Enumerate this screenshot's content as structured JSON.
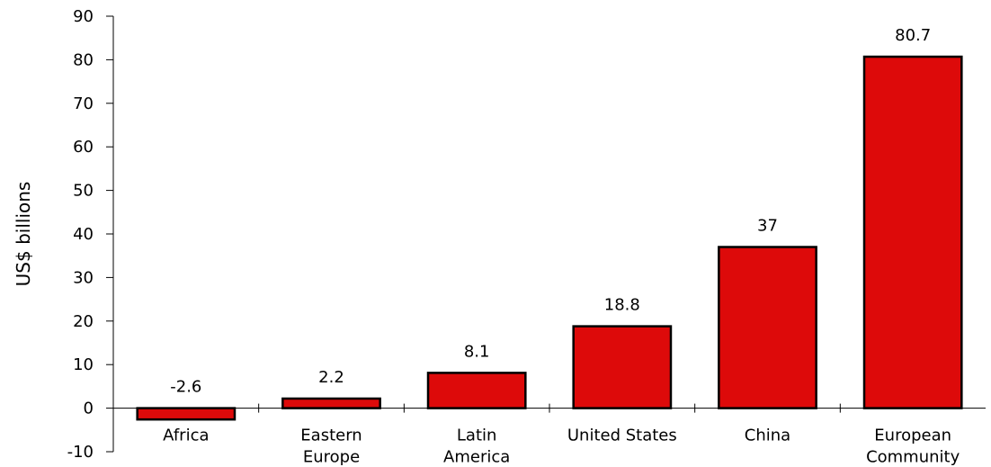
{
  "chart_data": {
    "type": "bar",
    "ylabel": "US$ billions",
    "xlabel": "",
    "title": "",
    "ylim": [
      -10,
      90
    ],
    "yticks": [
      -10,
      0,
      10,
      20,
      30,
      40,
      50,
      60,
      70,
      80,
      90
    ],
    "categories": [
      "Africa",
      "Eastern Europe",
      "Latin America",
      "United States",
      "China",
      "European Community"
    ],
    "category_label_lines": [
      [
        "Africa"
      ],
      [
        "Eastern",
        "Europe"
      ],
      [
        "Latin",
        "America"
      ],
      [
        "United States"
      ],
      [
        "China"
      ],
      [
        "European",
        "Community"
      ]
    ],
    "values": [
      -2.6,
      2.2,
      8.1,
      18.8,
      37,
      80.7
    ],
    "data_labels": [
      "-2.6",
      "2.2",
      "8.1",
      "18.8",
      "37",
      "80.7"
    ],
    "bar_color": "#dd0a0a",
    "grid": false,
    "legend": "none"
  }
}
